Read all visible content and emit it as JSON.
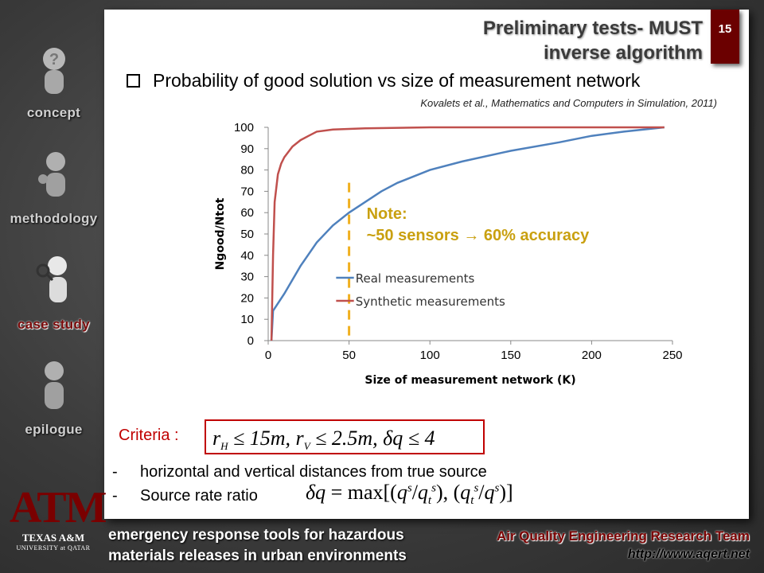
{
  "sidebar": {
    "items": [
      {
        "label": "concept",
        "icon": "question-figure-icon",
        "active": false
      },
      {
        "label": "methodology",
        "icon": "thinking-figure-icon",
        "active": false
      },
      {
        "label": "case study",
        "icon": "magnifier-figure-icon",
        "active": true
      },
      {
        "label": "epilogue",
        "icon": "figure-icon",
        "active": false
      }
    ]
  },
  "slide": {
    "title_line1": "Preliminary tests- MUST",
    "title_line2": "inverse algorithm",
    "page_number": "15",
    "heading": "Probability of good solution vs size of measurement network",
    "citation": "Kovalets et al., Mathematics and Computers in Simulation, 2011)",
    "criteria_label": "Criteria :",
    "bullet1": "horizontal and vertical distances from true source",
    "bullet2": "Source rate ratio",
    "dash": "-"
  },
  "footer": {
    "left_line1": "emergency response tools for hazardous",
    "left_line2": "materials releases in urban environments",
    "team": "Air Quality Engineering Research Team",
    "url": "http://www.aqert.net",
    "logo_letters": "ATM",
    "logo_line1": "TEXAS A&M",
    "logo_line2": "UNIVERSITY at QATAR"
  },
  "chart_data": {
    "type": "line",
    "xlabel": "Size of measurement network (K)",
    "ylabel": "Ngood/Ntot",
    "xlim": [
      0,
      250
    ],
    "ylim": [
      0,
      100
    ],
    "xticks": [
      0,
      50,
      100,
      150,
      200,
      250
    ],
    "yticks": [
      0,
      10,
      20,
      30,
      40,
      50,
      60,
      70,
      80,
      90,
      100
    ],
    "grid": false,
    "legend_position": "center-left",
    "series": [
      {
        "name": "Real measurements",
        "color": "#4f81bd",
        "x": [
          2,
          3,
          10,
          20,
          30,
          40,
          50,
          60,
          70,
          80,
          100,
          120,
          150,
          180,
          200,
          220,
          245
        ],
        "y": [
          0,
          14,
          22,
          35,
          46,
          54,
          60,
          65,
          70,
          74,
          80,
          84,
          89,
          93,
          96,
          98,
          100
        ]
      },
      {
        "name": "Synthetic measurements",
        "color": "#c0504d",
        "x": [
          2,
          3,
          4,
          6,
          8,
          10,
          15,
          20,
          25,
          30,
          40,
          60,
          100,
          150,
          245
        ],
        "y": [
          0,
          40,
          65,
          78,
          83,
          86,
          91,
          94,
          96,
          98,
          99,
          99.5,
          100,
          100,
          100
        ]
      }
    ],
    "annotations": [
      {
        "text": "Note:",
        "color": "#c9a010"
      },
      {
        "text": "~50 sensors → 60% accuracy",
        "color": "#c9a010"
      }
    ],
    "reference_line": {
      "x": 50,
      "color": "#f0b020",
      "style": "dashed"
    }
  }
}
